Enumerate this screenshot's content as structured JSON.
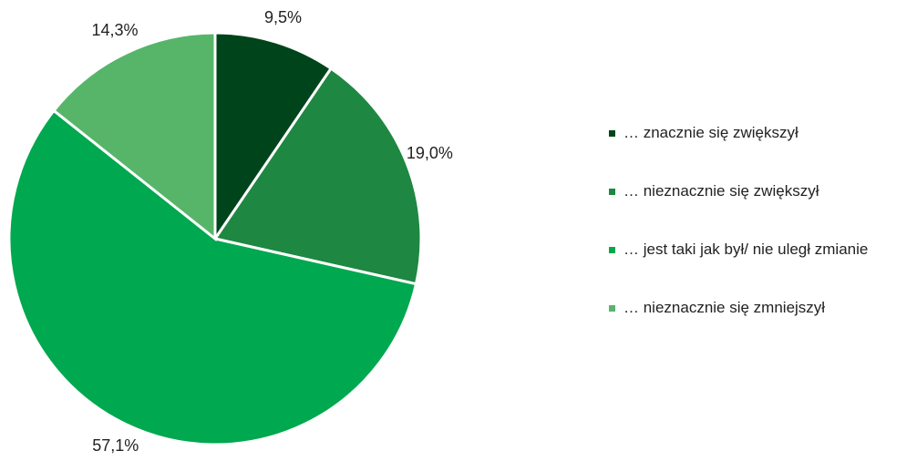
{
  "chart_data": {
    "type": "pie",
    "categories": [
      "… znacznie się zwiększył",
      "… nieznacznie się zwiększył",
      "… jest taki jak był/ nie uległ zmianie",
      "… nieznacznie się zmniejszył"
    ],
    "values": [
      9.5,
      19.0,
      57.1,
      14.3
    ],
    "value_labels": [
      "9,5%",
      "19,0%",
      "57,1%",
      "14,3%"
    ],
    "colors": [
      "#00441b",
      "#1e8741",
      "#00a84f",
      "#57b56a"
    ],
    "legend": "right"
  }
}
